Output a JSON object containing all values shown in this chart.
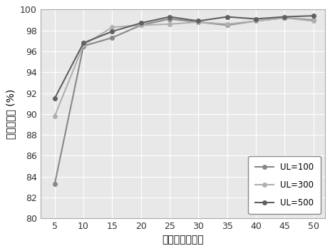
{
  "x": [
    5,
    10,
    15,
    20,
    25,
    30,
    35,
    40,
    45,
    50
  ],
  "UL100": [
    83.3,
    96.5,
    97.3,
    98.5,
    99.1,
    98.8,
    98.5,
    98.9,
    99.2,
    99.0
  ],
  "UL300": [
    89.8,
    96.6,
    98.3,
    98.5,
    98.6,
    98.8,
    98.6,
    98.9,
    99.2,
    98.9
  ],
  "UL500": [
    91.5,
    96.8,
    97.9,
    98.7,
    99.3,
    98.9,
    99.3,
    99.1,
    99.3,
    99.4
  ],
  "colors": {
    "UL100": "#888888",
    "UL300": "#b0b0b0",
    "UL500": "#606060"
  },
  "legend_labels": [
    "UL=100",
    "UL=300",
    "UL=500"
  ],
  "xlabel": "标签样本的数量",
  "ylabel": "测试准确率 (%)",
  "xlim": [
    2.5,
    52
  ],
  "ylim": [
    80,
    100
  ],
  "xticks": [
    5,
    10,
    15,
    20,
    25,
    30,
    35,
    40,
    45,
    50
  ],
  "yticks": [
    80,
    82,
    84,
    86,
    88,
    90,
    92,
    94,
    96,
    98,
    100
  ],
  "plot_bg": "#e8e8e8",
  "fig_bg": "#ffffff",
  "grid_color": "#ffffff",
  "marker": "o",
  "markersize": 4,
  "linewidth": 1.5
}
